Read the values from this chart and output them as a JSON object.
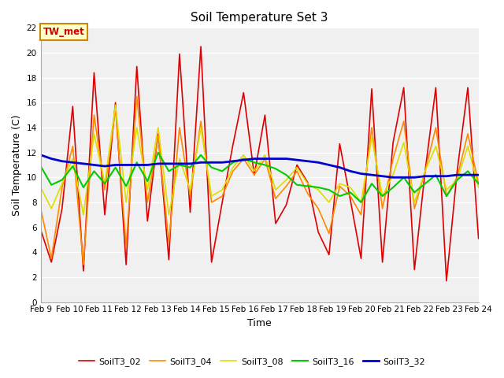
{
  "title": "Soil Temperature Set 3",
  "xlabel": "Time",
  "ylabel": "Soil Temperature (C)",
  "ylim": [
    0,
    22
  ],
  "yticks": [
    0,
    2,
    4,
    6,
    8,
    10,
    12,
    14,
    16,
    18,
    20,
    22
  ],
  "fig_bg_color": "#ffffff",
  "plot_bg_color": "#f0f0f0",
  "annotation": "TW_met",
  "annotation_color": "#cc0000",
  "annotation_bg": "#ffffcc",
  "annotation_border": "#cc8800",
  "series_order": [
    "SoilT3_02",
    "SoilT3_04",
    "SoilT3_08",
    "SoilT3_16",
    "SoilT3_32"
  ],
  "series": {
    "SoilT3_02": {
      "color": "#dd0000",
      "linewidth": 1.2,
      "data": [
        5.8,
        3.2,
        7.5,
        15.7,
        2.5,
        18.4,
        7.0,
        16.0,
        3.0,
        18.9,
        6.5,
        13.5,
        3.4,
        19.9,
        7.2,
        20.5,
        3.2,
        8.0,
        12.6,
        16.8,
        10.2,
        15.0,
        6.3,
        7.8,
        11.0,
        9.6,
        5.6,
        3.8,
        12.7,
        8.2,
        3.5,
        17.1,
        3.2,
        12.8,
        17.2,
        2.6,
        10.5,
        17.2,
        1.7,
        10.5,
        17.2,
        5.1
      ]
    },
    "SoilT3_04": {
      "color": "#ff8800",
      "linewidth": 1.2,
      "data": [
        7.5,
        3.5,
        9.2,
        12.5,
        3.0,
        15.0,
        9.0,
        15.5,
        4.5,
        16.5,
        8.0,
        13.3,
        4.8,
        14.0,
        8.5,
        14.5,
        8.0,
        8.5,
        10.5,
        11.5,
        10.2,
        11.5,
        8.3,
        9.3,
        10.5,
        8.7,
        7.5,
        5.5,
        9.3,
        8.5,
        7.0,
        14.0,
        7.5,
        11.5,
        14.5,
        7.5,
        10.5,
        14.0,
        8.5,
        10.0,
        13.5,
        9.5
      ]
    },
    "SoilT3_08": {
      "color": "#dddd00",
      "linewidth": 1.2,
      "data": [
        9.2,
        7.5,
        9.5,
        11.5,
        7.0,
        13.5,
        9.5,
        15.8,
        8.0,
        14.0,
        9.0,
        14.0,
        7.0,
        11.5,
        9.0,
        14.0,
        8.5,
        9.0,
        10.8,
        11.8,
        10.5,
        11.8,
        9.0,
        9.8,
        10.8,
        9.5,
        9.0,
        8.0,
        9.5,
        9.2,
        8.0,
        13.2,
        8.5,
        10.2,
        12.8,
        8.0,
        10.5,
        12.5,
        9.0,
        9.8,
        12.5,
        9.2
      ]
    },
    "SoilT3_16": {
      "color": "#00cc00",
      "linewidth": 1.5,
      "data": [
        10.9,
        9.4,
        9.8,
        10.9,
        9.2,
        10.5,
        9.5,
        10.8,
        9.3,
        11.2,
        9.7,
        12.0,
        10.5,
        11.0,
        10.8,
        11.8,
        10.8,
        10.5,
        11.2,
        11.5,
        11.2,
        11.0,
        10.7,
        10.2,
        9.4,
        9.3,
        9.2,
        9.0,
        8.5,
        8.8,
        8.0,
        9.5,
        8.5,
        9.2,
        10.0,
        8.8,
        9.5,
        10.2,
        8.5,
        9.8,
        10.5,
        9.5
      ]
    },
    "SoilT3_32": {
      "color": "#0000cc",
      "linewidth": 2.0,
      "data": [
        11.8,
        11.5,
        11.3,
        11.2,
        11.1,
        11.0,
        10.9,
        11.0,
        11.0,
        11.0,
        11.0,
        11.1,
        11.1,
        11.1,
        11.1,
        11.2,
        11.2,
        11.2,
        11.3,
        11.4,
        11.5,
        11.5,
        11.5,
        11.5,
        11.4,
        11.3,
        11.2,
        11.0,
        10.8,
        10.5,
        10.3,
        10.2,
        10.1,
        10.0,
        10.0,
        10.0,
        10.1,
        10.1,
        10.1,
        10.2,
        10.2,
        10.2
      ]
    }
  },
  "xtick_labels": [
    "Feb 9",
    "Feb 10",
    "Feb 11",
    "Feb 12",
    "Feb 13",
    "Feb 14",
    "Feb 15",
    "Feb 16",
    "Feb 17",
    "Feb 18",
    "Feb 19",
    "Feb 20",
    "Feb 21",
    "Feb 22",
    "Feb 23",
    "Feb 24"
  ],
  "n_points": 42,
  "start_day": 9,
  "end_day": 24
}
